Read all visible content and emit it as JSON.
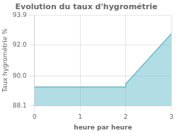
{
  "chart_data": {
    "type": "area",
    "title": "Evolution du taux d'hygrométrie",
    "x": [
      0,
      2,
      2,
      3
    ],
    "values": [
      89.3,
      89.3,
      89.5,
      92.7
    ],
    "color": "#66bbcc",
    "xlabel": "heure par heure",
    "ylabel": "Taux hygrométrie %",
    "xlim": [
      0,
      3
    ],
    "xticks": [
      0,
      1,
      2,
      3
    ],
    "ylim": [
      88.1,
      93.9
    ],
    "yticks": [
      88.1,
      {
        "value": 90,
        "label": "90.0"
      },
      {
        "value": 92,
        "label": "92.0"
      },
      93.9
    ],
    "grid": true
  }
}
